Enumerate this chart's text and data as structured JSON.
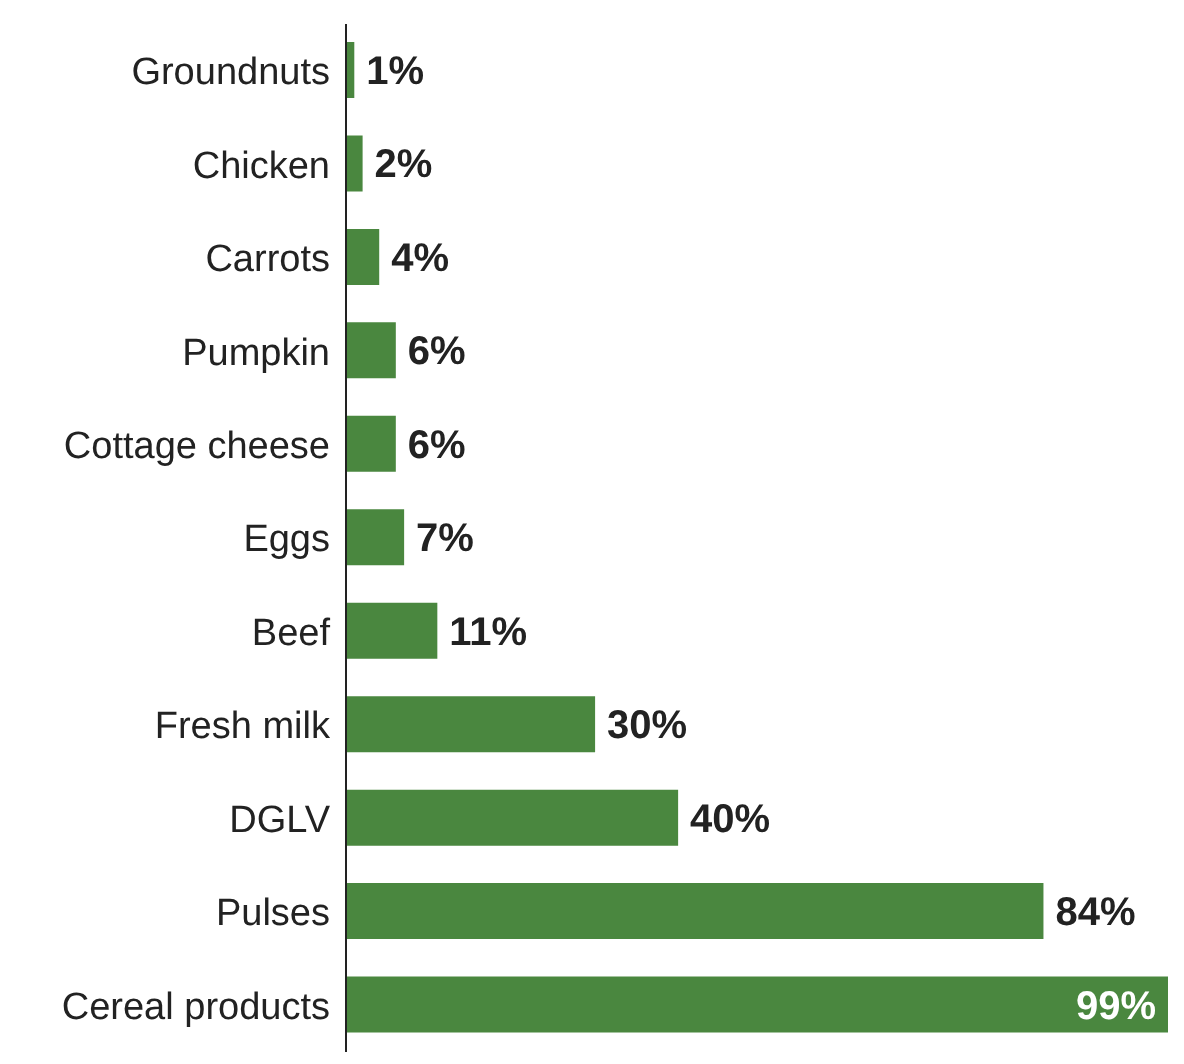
{
  "chart_data": {
    "type": "bar",
    "orientation": "horizontal",
    "categories": [
      "Groundnuts",
      "Chicken",
      "Carrots",
      "Pumpkin",
      "Cottage cheese",
      "Eggs",
      "Beef",
      "Fresh milk",
      "DGLV",
      "Pulses",
      "Cereal products"
    ],
    "values": [
      1,
      2,
      4,
      6,
      6,
      7,
      11,
      30,
      40,
      84,
      99
    ],
    "value_labels": [
      "1%",
      "2%",
      "4%",
      "6%",
      "6%",
      "7%",
      "11%",
      "30%",
      "40%",
      "84%",
      "99%"
    ],
    "color": "#4a873f",
    "grid": false,
    "legend": false
  }
}
